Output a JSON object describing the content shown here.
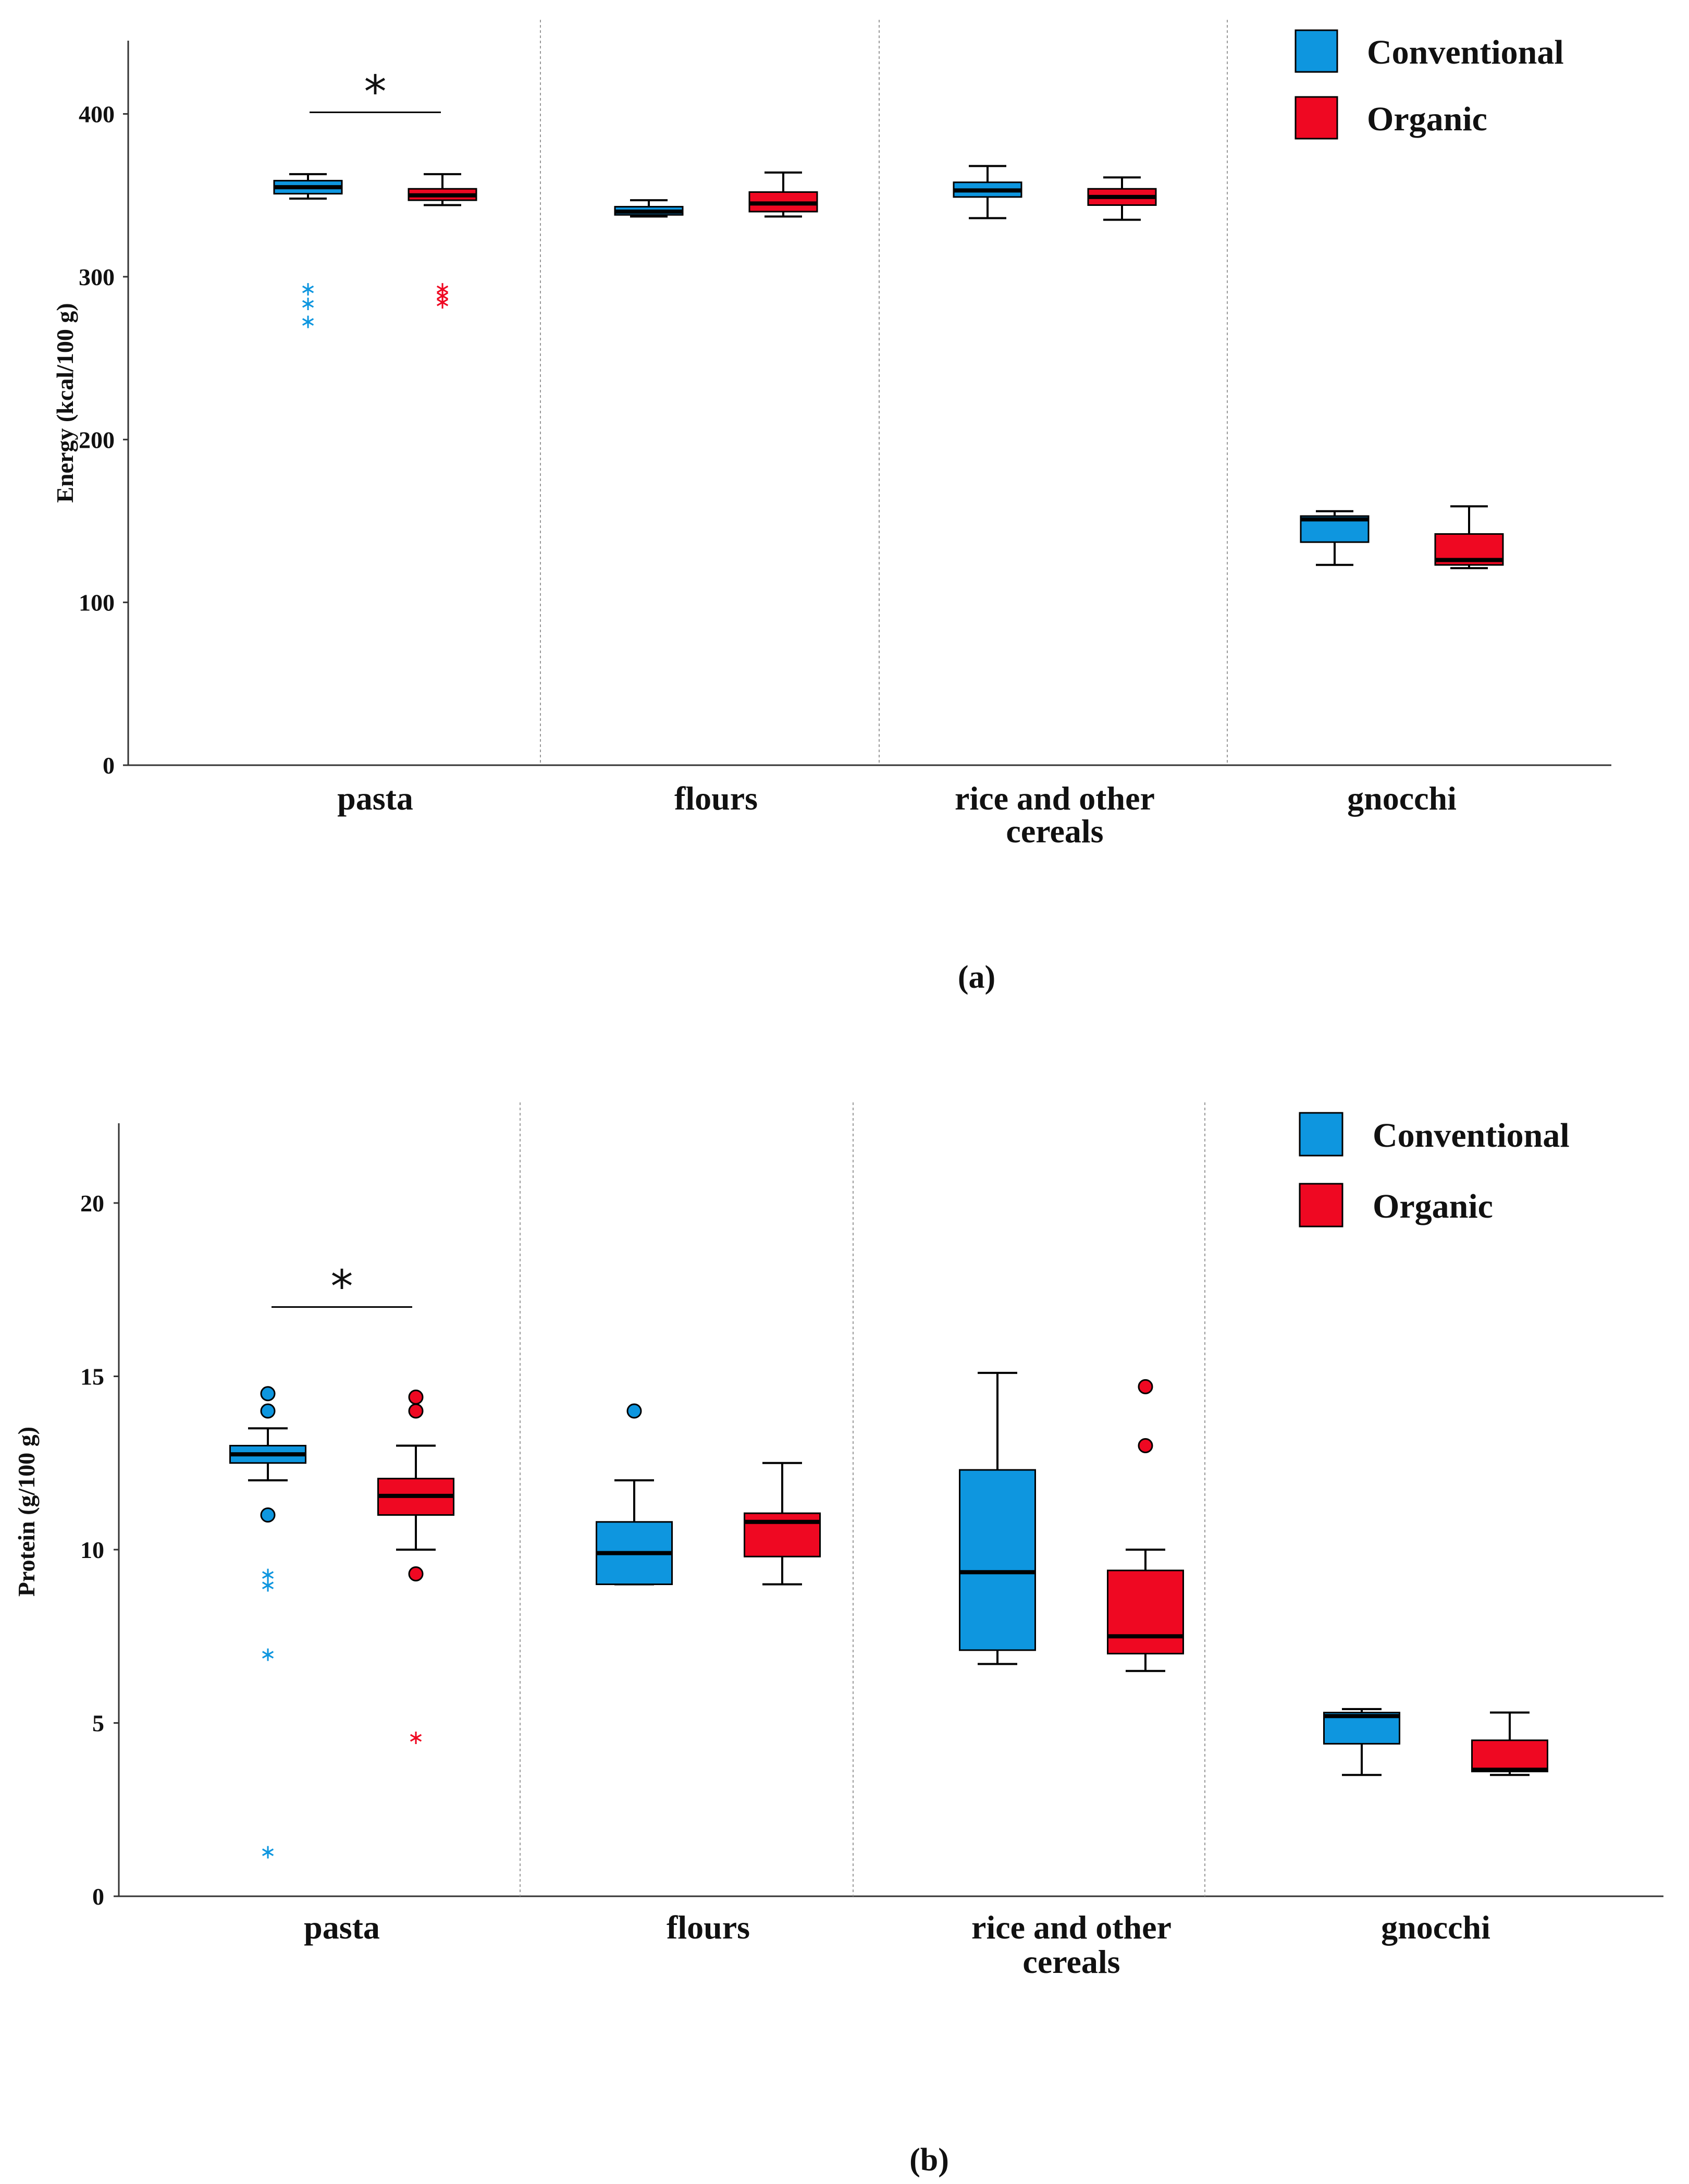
{
  "colors": {
    "conventional": "#0e96df",
    "organic": "#ef0822",
    "axis": "#333333",
    "divider": "#999999"
  },
  "legend": {
    "conventional": "Conventional",
    "organic": "Organic"
  },
  "chart_data": [
    {
      "type": "boxplot",
      "panel": "(a)",
      "ylabel": "Energy (kcal/100 g)",
      "xlabel": "",
      "ylim": [
        0,
        445
      ],
      "yticks": [
        0,
        100,
        200,
        300,
        400
      ],
      "categories": [
        [
          "pasta"
        ],
        [
          "flours"
        ],
        [
          "rice and other",
          "cereals"
        ],
        [
          "gnocchi"
        ]
      ],
      "series": [
        {
          "name": "Conventional",
          "boxes": [
            {
              "min": 348,
              "q1": 351,
              "median": 355,
              "q3": 359,
              "max": 363,
              "outliers_circle": [],
              "outliers_star": [
                293,
                284,
                273
              ]
            },
            {
              "min": 337,
              "q1": 338,
              "median": 340,
              "q3": 343,
              "max": 347,
              "outliers_circle": [],
              "outliers_star": []
            },
            {
              "min": 336,
              "q1": 349,
              "median": 353,
              "q3": 358,
              "max": 368,
              "outliers_circle": [],
              "outliers_star": []
            },
            {
              "min": 123,
              "q1": 137,
              "median": 151,
              "q3": 153,
              "max": 156,
              "outliers_circle": [],
              "outliers_star": []
            }
          ]
        },
        {
          "name": "Organic",
          "boxes": [
            {
              "min": 344,
              "q1": 347,
              "median": 350,
              "q3": 354,
              "max": 363,
              "outliers_circle": [],
              "outliers_star": [
                293,
                289,
                285
              ]
            },
            {
              "min": 337,
              "q1": 340,
              "median": 345,
              "q3": 352,
              "max": 364,
              "outliers_circle": [],
              "outliers_star": []
            },
            {
              "min": 335,
              "q1": 344,
              "median": 349,
              "q3": 354,
              "max": 361,
              "outliers_circle": [],
              "outliers_star": []
            },
            {
              "min": 121,
              "q1": 123,
              "median": 126,
              "q3": 142,
              "max": 159,
              "outliers_circle": [],
              "outliers_star": []
            }
          ]
        }
      ],
      "significance": {
        "category": "pasta",
        "label": "*",
        "y_value": 401
      }
    },
    {
      "type": "boxplot",
      "panel": "(b)",
      "ylabel": "Protein (g/100 g)",
      "xlabel": "",
      "ylim": [
        0,
        22.3
      ],
      "yticks": [
        0,
        5,
        10,
        15,
        20
      ],
      "categories": [
        [
          "pasta"
        ],
        [
          "flours"
        ],
        [
          "rice and other",
          "cereals"
        ],
        [
          "gnocchi"
        ]
      ],
      "series": [
        {
          "name": "Conventional",
          "boxes": [
            {
              "min": 12.0,
              "q1": 12.5,
              "median": 12.75,
              "q3": 13.0,
              "max": 13.5,
              "outliers_circle": [
                14.5,
                14.0,
                11.0
              ],
              "outliers_star": [
                9.3,
                9.0,
                7.0,
                1.3
              ]
            },
            {
              "min": 9.0,
              "q1": 9.0,
              "median": 9.9,
              "q3": 10.8,
              "max": 12.0,
              "outliers_circle": [
                14.0
              ],
              "outliers_star": []
            },
            {
              "min": 6.7,
              "q1": 7.1,
              "median": 9.35,
              "q3": 12.3,
              "max": 15.1,
              "outliers_circle": [],
              "outliers_star": []
            },
            {
              "min": 3.5,
              "q1": 4.4,
              "median": 5.2,
              "q3": 5.3,
              "max": 5.4,
              "outliers_circle": [],
              "outliers_star": []
            }
          ]
        },
        {
          "name": "Organic",
          "boxes": [
            {
              "min": 10.0,
              "q1": 11.0,
              "median": 11.55,
              "q3": 12.05,
              "max": 13.0,
              "outliers_circle": [
                14.4,
                14.0,
                9.3
              ],
              "outliers_star": [
                4.6
              ]
            },
            {
              "min": 9.0,
              "q1": 9.8,
              "median": 10.8,
              "q3": 11.05,
              "max": 12.5,
              "outliers_circle": [],
              "outliers_star": []
            },
            {
              "min": 6.5,
              "q1": 7.0,
              "median": 7.5,
              "q3": 9.4,
              "max": 10.0,
              "outliers_circle": [
                14.7,
                13.0
              ],
              "outliers_star": []
            },
            {
              "min": 3.5,
              "q1": 3.6,
              "median": 3.65,
              "q3": 4.5,
              "max": 5.3,
              "outliers_circle": [],
              "outliers_star": []
            }
          ]
        }
      ],
      "significance": {
        "category": "pasta",
        "label": "*",
        "y_value": 17.0
      }
    }
  ]
}
